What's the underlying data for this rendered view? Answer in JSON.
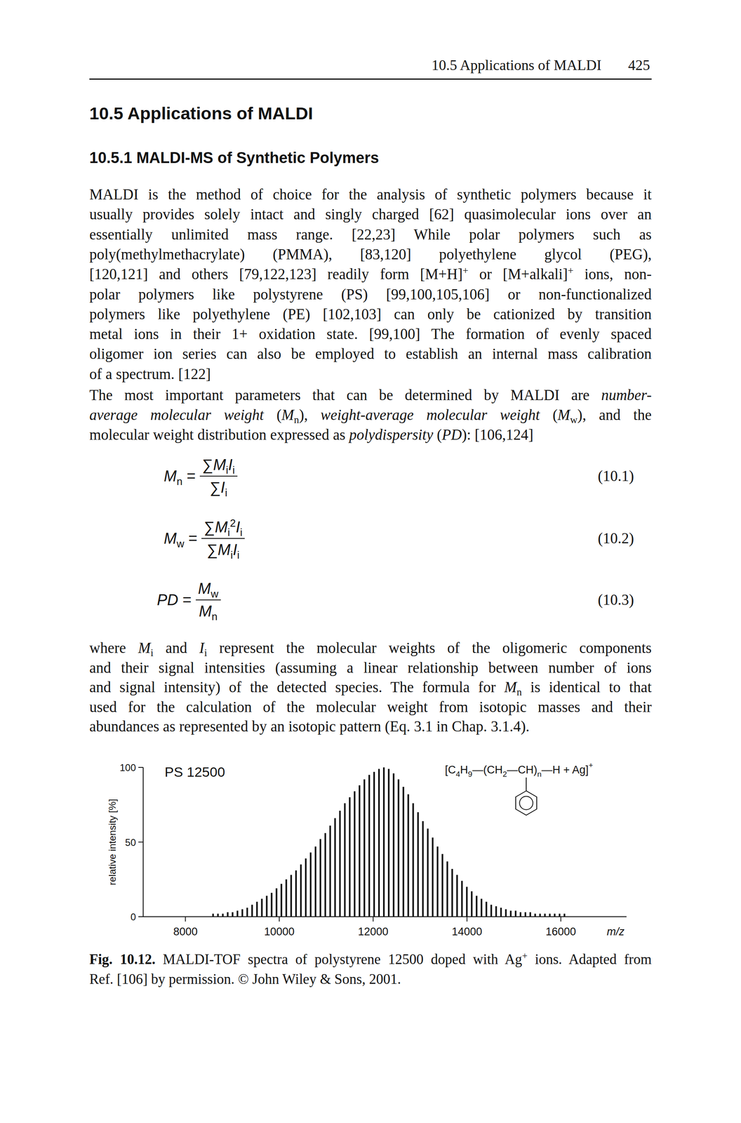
{
  "page": {
    "header": {
      "title": "10.5 Applications of MALDI",
      "page_number": "425"
    },
    "heading": "10.5 Applications of MALDI",
    "subheading": "10.5.1 MALDI-MS of Synthetic Polymers",
    "paragraphs": [
      [
        [
          {
            "text": "MALDI is the method of choice for the analysis of synthetic polymers because it"
          }
        ],
        [
          {
            "text": "usually provides solely intact and singly charged [62] quasimolecular ions over an"
          }
        ],
        [
          {
            "text": "essentially unlimited mass range. [22,23] While polar polymers such as"
          }
        ],
        [
          {
            "text": "poly(methylmethacrylate) (PMMA), [83,120] polyethylene glycol (PEG),"
          }
        ],
        [
          {
            "text": "[120,121] and others [79,122,123] readily form [M+H]"
          },
          {
            "text": "+",
            "style": "sup"
          },
          {
            "text": " or [M+alkali]"
          },
          {
            "text": "+",
            "style": "sup"
          },
          {
            "text": " ions, non-"
          }
        ],
        [
          {
            "text": "polar polymers like polystyrene (PS) [99,100,105,106] or non-functionalized"
          }
        ],
        [
          {
            "text": "polymers like polyethylene (PE) [102,103] can only be cationized by transition"
          }
        ],
        [
          {
            "text": "metal ions in their 1+ oxidation state. [99,100] The formation of evenly spaced"
          }
        ],
        [
          {
            "text": "oligomer ion series can also be employed to establish an internal mass calibration"
          }
        ],
        [
          {
            "text": "of a spectrum. [122]"
          }
        ]
      ],
      [
        [
          {
            "text": "The most important parameters that can be determined by MALDI are "
          },
          {
            "text": "number-",
            "style": "italic"
          }
        ],
        [
          {
            "text": "average molecular weight",
            "style": "italic"
          },
          {
            "text": " ("
          },
          {
            "text": "M",
            "style": "italic"
          },
          {
            "text": "n",
            "style": "sub"
          },
          {
            "text": "), "
          },
          {
            "text": "weight-average molecular weight",
            "style": "italic"
          },
          {
            "text": " ("
          },
          {
            "text": "M",
            "style": "italic"
          },
          {
            "text": "w",
            "style": "sub"
          },
          {
            "text": "), and the"
          }
        ],
        [
          {
            "text": "molecular weight distribution expressed as "
          },
          {
            "text": "polydispersity",
            "style": "italic"
          },
          {
            "text": " ("
          },
          {
            "text": "PD",
            "style": "italic"
          },
          {
            "text": "): [106,124]"
          }
        ]
      ],
      [
        [
          {
            "text": "where "
          },
          {
            "text": "M",
            "style": "italic"
          },
          {
            "text": "i",
            "style": "sub"
          },
          {
            "text": " and "
          },
          {
            "text": "I",
            "style": "italic"
          },
          {
            "text": "i",
            "style": "sub"
          },
          {
            "text": " represent the molecular weights of the oligomeric components"
          }
        ],
        [
          {
            "text": "and their signal intensities (assuming a linear relationship between number of ions"
          }
        ],
        [
          {
            "text": "and signal intensity) of the detected species. The formula for "
          },
          {
            "text": "M",
            "style": "italic"
          },
          {
            "text": "n",
            "style": "sub"
          },
          {
            "text": " is identical to that"
          }
        ],
        [
          {
            "text": "used for the calculation of the molecular weight from isotopic masses and their"
          }
        ],
        [
          {
            "text": "abundances as represented by an isotopic pattern (Eq. 3.1 in Chap. 3.1.4)."
          }
        ]
      ]
    ],
    "equations": [
      {
        "lhs": [
          {
            "text": "M",
            "style": "italic"
          },
          {
            "text": "n",
            "style": "sub"
          },
          {
            "text": " ="
          }
        ],
        "numerator": [
          {
            "text": "∑"
          },
          {
            "text": "M",
            "style": "italic"
          },
          {
            "text": "i",
            "style": "sub"
          },
          {
            "text": "I",
            "style": "italic"
          },
          {
            "text": "i",
            "style": "sub"
          }
        ],
        "denominator": [
          {
            "text": "∑"
          },
          {
            "text": "I",
            "style": "italic"
          },
          {
            "text": "i",
            "style": "sub"
          }
        ],
        "label": "(10.1)"
      },
      {
        "lhs": [
          {
            "text": "M",
            "style": "italic"
          },
          {
            "text": "w",
            "style": "sub"
          },
          {
            "text": " ="
          }
        ],
        "numerator": [
          {
            "text": "∑"
          },
          {
            "text": "M",
            "style": "italic"
          },
          {
            "text": "i",
            "style": "sub"
          },
          {
            "text": "2",
            "style": "sup"
          },
          {
            "text": "I",
            "style": "italic"
          },
          {
            "text": "i",
            "style": "sub"
          }
        ],
        "denominator": [
          {
            "text": "∑"
          },
          {
            "text": "M",
            "style": "italic"
          },
          {
            "text": "i",
            "style": "sub"
          },
          {
            "text": "I",
            "style": "italic"
          },
          {
            "text": "i",
            "style": "sub"
          }
        ],
        "label": "(10.2)"
      },
      {
        "lhs": [
          {
            "text": "PD",
            "style": "italic"
          },
          {
            "text": " ="
          }
        ],
        "numerator": [
          {
            "text": "M",
            "style": "italic"
          },
          {
            "text": "w",
            "style": "sub"
          }
        ],
        "denominator": [
          {
            "text": "M",
            "style": "italic"
          },
          {
            "text": "n",
            "style": "sub"
          }
        ],
        "label": "(10.3)"
      }
    ],
    "caption": [
      [
        {
          "text": "Fig. 10.12.",
          "style": "bold"
        },
        {
          "text": " MALDI-TOF spectra of polystyrene 12500 doped with Ag"
        },
        {
          "text": "+",
          "style": "sup"
        },
        {
          "text": " ions. Adapted from"
        }
      ],
      [
        {
          "text": "Ref. [106] by permission. © John Wiley & Sons, 2001."
        }
      ]
    ]
  },
  "chart_data": {
    "type": "bar",
    "title": "PS 12500",
    "xlabel": "m/z",
    "ylabel": "relative intensity [%]",
    "annotations": [
      [
        {
          "text": "[C"
        },
        {
          "text": "4",
          "style": "sub"
        },
        {
          "text": "H"
        },
        {
          "text": "9",
          "style": "sub"
        },
        {
          "text": "—(CH"
        },
        {
          "text": "2",
          "style": "sub"
        },
        {
          "text": "—CH)"
        },
        {
          "text": "n",
          "style": "sub"
        },
        {
          "text": "—H + Ag]"
        },
        {
          "text": "+",
          "style": "sup"
        }
      ]
    ],
    "x": [
      8589,
      8693,
      8797,
      8901,
      9005,
      9109,
      9213,
      9317,
      9421,
      9525,
      9629,
      9733,
      9837,
      9941,
      10045,
      10149,
      10253,
      10357,
      10461,
      10565,
      10669,
      10773,
      10877,
      10981,
      11085,
      11189,
      11293,
      11397,
      11501,
      11605,
      11709,
      11813,
      11917,
      12021,
      12125,
      12229,
      12333,
      12437,
      12541,
      12645,
      12749,
      12853,
      12957,
      13061,
      13165,
      13269,
      13373,
      13477,
      13581,
      13685,
      13789,
      13893,
      13997,
      14101,
      14205,
      14309,
      14413,
      14517,
      14621,
      14725,
      14829,
      14933,
      15037,
      15141,
      15245,
      15349,
      15453,
      15557,
      15661,
      15765,
      15869,
      15973,
      16077
    ],
    "values": [
      2,
      2,
      2,
      3,
      3,
      4,
      5,
      6,
      8,
      10,
      12,
      14,
      16,
      19,
      22,
      25,
      28,
      31,
      35,
      39,
      43,
      47,
      52,
      56,
      61,
      66,
      71,
      76,
      80,
      84,
      88,
      92,
      95,
      97,
      99,
      100,
      99,
      96,
      92,
      87,
      82,
      76,
      70,
      64,
      59,
      53,
      47,
      42,
      37,
      32,
      28,
      24,
      20,
      17,
      14,
      12,
      10,
      8,
      7,
      6,
      5,
      4,
      4,
      3,
      3,
      3,
      2,
      2,
      2,
      2,
      2,
      2,
      2
    ],
    "color": "#111111",
    "xlim": [
      7100,
      17400
    ],
    "ylim": [
      0,
      100
    ],
    "xticks": [
      8000,
      10000,
      12000,
      14000,
      16000
    ],
    "yticks": [
      0,
      50,
      100
    ]
  }
}
